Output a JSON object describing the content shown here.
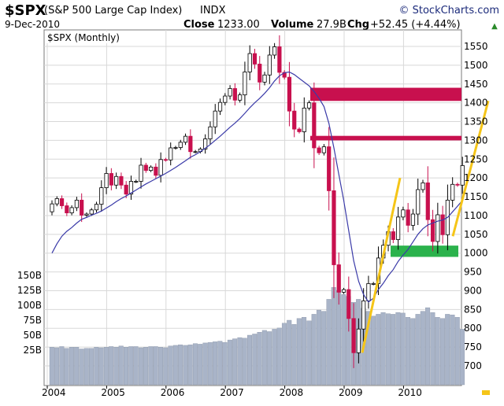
{
  "header": {
    "ticker": "$SPX",
    "name": "(S&P 500 Large Cap Index)",
    "exchange": "INDX",
    "source": "© StockCharts.com",
    "date": "9-Dec-2010",
    "close_label": "Close",
    "close_value": "1233.00",
    "volume_label": "Volume",
    "volume_value": "27.9B",
    "chg_label": "Chg",
    "chg_value": "+52.45 (+4.44%)",
    "chg_arrow": "▲"
  },
  "chart_data": {
    "type": "candlestick",
    "legend": "$SPX (Monthly)",
    "price_axis": {
      "ticks": [
        700,
        750,
        800,
        850,
        900,
        950,
        1000,
        1050,
        1100,
        1150,
        1200,
        1250,
        1300,
        1350,
        1400,
        1450,
        1500,
        1550
      ],
      "range": [
        670,
        1580
      ]
    },
    "volume_axis": {
      "ticks": [
        25,
        50,
        75,
        100,
        125,
        150
      ],
      "tick_labels": [
        "25B",
        "50B",
        "75B",
        "100B",
        "125B",
        "150B"
      ],
      "unit": "B"
    },
    "x_axis": {
      "years": [
        "2004",
        "2005",
        "2006",
        "2007",
        "2008",
        "2009",
        "2010"
      ],
      "start": "2004-01"
    },
    "closes": [
      1131,
      1145,
      1126,
      1107,
      1121,
      1141,
      1101,
      1104,
      1115,
      1130,
      1174,
      1212,
      1181,
      1204,
      1181,
      1157,
      1191,
      1191,
      1234,
      1220,
      1229,
      1207,
      1249,
      1248,
      1280,
      1281,
      1295,
      1311,
      1270,
      1270,
      1277,
      1304,
      1336,
      1378,
      1401,
      1418,
      1438,
      1407,
      1421,
      1482,
      1531,
      1503,
      1455,
      1474,
      1527,
      1549,
      1481,
      1468,
      1378,
      1330,
      1323,
      1386,
      1400,
      1280,
      1267,
      1283,
      1166,
      969,
      896,
      903,
      826,
      735,
      798,
      873,
      919,
      919,
      987,
      1021,
      1057,
      1036,
      1096,
      1115,
      1074,
      1104,
      1169,
      1187,
      1089,
      1031,
      1102,
      1049,
      1141,
      1183,
      1181,
      1233
    ],
    "sma": [
      1000,
      1025,
      1045,
      1058,
      1068,
      1080,
      1090,
      1095,
      1101,
      1106,
      1112,
      1120,
      1128,
      1137,
      1145,
      1152,
      1160,
      1168,
      1176,
      1184,
      1191,
      1198,
      1205,
      1212,
      1220,
      1228,
      1237,
      1246,
      1255,
      1262,
      1270,
      1279,
      1289,
      1300,
      1311,
      1323,
      1335,
      1346,
      1358,
      1372,
      1387,
      1400,
      1412,
      1425,
      1440,
      1458,
      1472,
      1480,
      1482,
      1475,
      1465,
      1455,
      1445,
      1430,
      1412,
      1390,
      1345,
      1280,
      1210,
      1140,
      1060,
      980,
      925,
      890,
      870,
      880,
      903,
      920,
      940,
      956,
      978,
      995,
      1010,
      1030,
      1050,
      1065,
      1075,
      1080,
      1085,
      1088,
      1095,
      1110,
      1125,
      1140
    ],
    "volume": [
      30,
      29,
      31,
      28,
      30,
      30,
      27,
      28,
      28,
      30,
      29,
      30,
      31,
      30,
      32,
      30,
      31,
      31,
      29,
      30,
      31,
      31,
      30,
      29,
      32,
      33,
      34,
      33,
      34,
      36,
      35,
      37,
      38,
      39,
      40,
      38,
      42,
      44,
      46,
      45,
      50,
      52,
      55,
      58,
      56,
      60,
      62,
      70,
      75,
      68,
      78,
      80,
      74,
      85,
      92,
      90,
      110,
      130,
      125,
      118,
      115,
      105,
      110,
      95,
      90,
      82,
      85,
      88,
      86,
      85,
      88,
      87,
      80,
      78,
      85,
      90,
      96,
      88,
      80,
      78,
      85,
      84,
      80,
      60
    ],
    "annotations": [
      {
        "type": "zone",
        "color": "#c8104e",
        "from": 1405,
        "to": 1440
      },
      {
        "type": "zone",
        "color": "#c8104e",
        "from": 1300,
        "to": 1312
      },
      {
        "type": "zone",
        "color": "#2bb24c",
        "from": 990,
        "to": 1020
      },
      {
        "type": "trendline",
        "color": "#f5c518"
      },
      {
        "type": "trendline",
        "color": "#f5c518"
      }
    ]
  }
}
